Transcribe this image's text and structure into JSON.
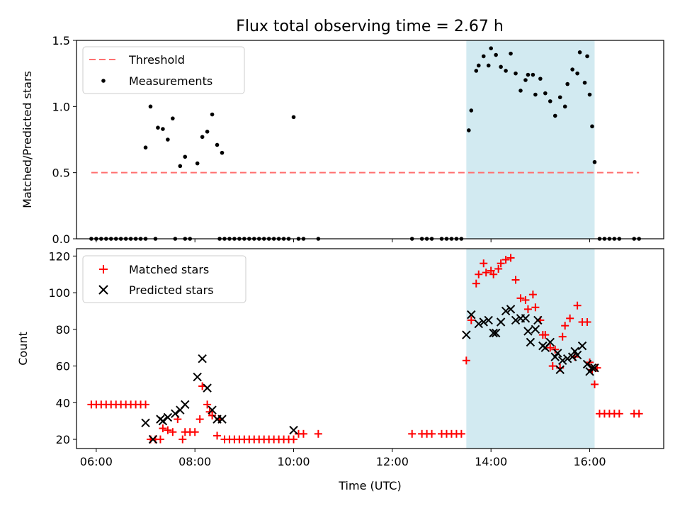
{
  "title": "Flux total observing time = 2.67 h",
  "colors": {
    "threshold": "#ff7070",
    "measurement": "#000000",
    "matched": "#ff0000",
    "predicted": "#000000",
    "span": "#add8e6"
  },
  "chart_data": [
    {
      "type": "scatter",
      "ylabel": "Matched/Predicted stars",
      "xlabel": "",
      "ylim": [
        0,
        1.5
      ],
      "yticks": [
        "0.0",
        "0.5",
        "1.0",
        "1.5"
      ],
      "legend": {
        "placement": "top-left",
        "entries": [
          "Threshold",
          "Measurements"
        ]
      },
      "threshold": {
        "name": "Threshold",
        "value": 0.5,
        "x_start": 5.9,
        "x_end": 17.0
      },
      "highlight_span": [
        13.5,
        16.1
      ],
      "series": [
        {
          "name": "Measurements",
          "points": [
            [
              5.9,
              0
            ],
            [
              6.0,
              0
            ],
            [
              6.1,
              0
            ],
            [
              6.2,
              0
            ],
            [
              6.3,
              0
            ],
            [
              6.4,
              0
            ],
            [
              6.5,
              0
            ],
            [
              6.6,
              0
            ],
            [
              6.7,
              0
            ],
            [
              6.8,
              0
            ],
            [
              6.9,
              0
            ],
            [
              7.0,
              0
            ],
            [
              7.2,
              0
            ],
            [
              7.6,
              0
            ],
            [
              7.8,
              0
            ],
            [
              7.9,
              0
            ],
            [
              7.0,
              0.69
            ],
            [
              7.1,
              1.0
            ],
            [
              7.25,
              0.84
            ],
            [
              7.35,
              0.83
            ],
            [
              7.45,
              0.75
            ],
            [
              7.55,
              0.91
            ],
            [
              7.7,
              0.55
            ],
            [
              7.8,
              0.62
            ],
            [
              8.05,
              0.57
            ],
            [
              8.15,
              0.77
            ],
            [
              8.25,
              0.81
            ],
            [
              8.35,
              0.94
            ],
            [
              8.45,
              0.71
            ],
            [
              8.55,
              0.65
            ],
            [
              8.5,
              0
            ],
            [
              8.6,
              0
            ],
            [
              8.7,
              0
            ],
            [
              8.8,
              0
            ],
            [
              8.9,
              0
            ],
            [
              9.0,
              0
            ],
            [
              9.1,
              0
            ],
            [
              9.2,
              0
            ],
            [
              9.3,
              0
            ],
            [
              9.4,
              0
            ],
            [
              9.5,
              0
            ],
            [
              9.6,
              0
            ],
            [
              9.7,
              0
            ],
            [
              9.8,
              0
            ],
            [
              9.9,
              0
            ],
            [
              10.0,
              0.92
            ],
            [
              10.1,
              0
            ],
            [
              10.2,
              0
            ],
            [
              10.5,
              0
            ],
            [
              12.4,
              0
            ],
            [
              12.6,
              0
            ],
            [
              12.7,
              0
            ],
            [
              12.8,
              0
            ],
            [
              13.0,
              0
            ],
            [
              13.1,
              0
            ],
            [
              13.2,
              0
            ],
            [
              13.3,
              0
            ],
            [
              13.4,
              0
            ],
            [
              13.55,
              0.82
            ],
            [
              13.6,
              0.97
            ],
            [
              13.7,
              1.27
            ],
            [
              13.75,
              1.31
            ],
            [
              13.85,
              1.38
            ],
            [
              13.95,
              1.31
            ],
            [
              14.0,
              1.44
            ],
            [
              14.1,
              1.39
            ],
            [
              14.2,
              1.3
            ],
            [
              14.3,
              1.27
            ],
            [
              14.4,
              1.4
            ],
            [
              14.5,
              1.25
            ],
            [
              14.6,
              1.12
            ],
            [
              14.7,
              1.2
            ],
            [
              14.75,
              1.24
            ],
            [
              14.85,
              1.24
            ],
            [
              14.9,
              1.09
            ],
            [
              15.0,
              1.21
            ],
            [
              15.1,
              1.1
            ],
            [
              15.2,
              1.04
            ],
            [
              15.3,
              0.93
            ],
            [
              15.4,
              1.07
            ],
            [
              15.5,
              1.0
            ],
            [
              15.55,
              1.17
            ],
            [
              15.65,
              1.28
            ],
            [
              15.75,
              1.25
            ],
            [
              15.8,
              1.41
            ],
            [
              15.9,
              1.18
            ],
            [
              15.95,
              1.38
            ],
            [
              16.0,
              1.09
            ],
            [
              16.05,
              0.85
            ],
            [
              16.1,
              0.58
            ],
            [
              16.2,
              0
            ],
            [
              16.3,
              0
            ],
            [
              16.4,
              0
            ],
            [
              16.5,
              0
            ],
            [
              16.6,
              0
            ],
            [
              16.9,
              0
            ],
            [
              17.0,
              0
            ]
          ]
        }
      ]
    },
    {
      "type": "scatter",
      "ylabel": "Count",
      "xlabel": "Time (UTC)",
      "ylim": [
        15,
        124
      ],
      "yticks": [
        "20",
        "40",
        "60",
        "80",
        "100",
        "120"
      ],
      "xlim": [
        5.6,
        17.5
      ],
      "xticks": [
        "06:00",
        "08:00",
        "10:00",
        "12:00",
        "14:00",
        "16:00"
      ],
      "legend": {
        "placement": "top-left",
        "entries": [
          "Matched stars",
          "Predicted stars"
        ]
      },
      "highlight_span": [
        13.5,
        16.1
      ],
      "series": [
        {
          "name": "Matched stars",
          "points": [
            [
              5.9,
              39
            ],
            [
              6.0,
              39
            ],
            [
              6.1,
              39
            ],
            [
              6.2,
              39
            ],
            [
              6.3,
              39
            ],
            [
              6.4,
              39
            ],
            [
              6.5,
              39
            ],
            [
              6.6,
              39
            ],
            [
              6.7,
              39
            ],
            [
              6.8,
              39
            ],
            [
              6.9,
              39
            ],
            [
              7.0,
              39
            ],
            [
              7.1,
              20
            ],
            [
              7.2,
              20
            ],
            [
              7.3,
              20
            ],
            [
              7.35,
              26
            ],
            [
              7.45,
              25
            ],
            [
              7.55,
              24
            ],
            [
              7.65,
              31
            ],
            [
              7.75,
              20
            ],
            [
              7.8,
              24
            ],
            [
              7.9,
              24
            ],
            [
              8.0,
              24
            ],
            [
              8.1,
              31
            ],
            [
              8.15,
              49
            ],
            [
              8.25,
              39
            ],
            [
              8.3,
              35
            ],
            [
              8.35,
              33
            ],
            [
              8.45,
              22
            ],
            [
              8.5,
              31
            ],
            [
              8.6,
              20
            ],
            [
              8.7,
              20
            ],
            [
              8.8,
              20
            ],
            [
              8.9,
              20
            ],
            [
              9.0,
              20
            ],
            [
              9.1,
              20
            ],
            [
              9.2,
              20
            ],
            [
              9.3,
              20
            ],
            [
              9.4,
              20
            ],
            [
              9.5,
              20
            ],
            [
              9.6,
              20
            ],
            [
              9.7,
              20
            ],
            [
              9.8,
              20
            ],
            [
              9.9,
              20
            ],
            [
              10.0,
              20
            ],
            [
              10.1,
              23
            ],
            [
              10.2,
              23
            ],
            [
              10.5,
              23
            ],
            [
              12.4,
              23
            ],
            [
              12.6,
              23
            ],
            [
              12.7,
              23
            ],
            [
              12.8,
              23
            ],
            [
              13.0,
              23
            ],
            [
              13.1,
              23
            ],
            [
              13.2,
              23
            ],
            [
              13.3,
              23
            ],
            [
              13.4,
              23
            ],
            [
              13.5,
              63
            ],
            [
              13.6,
              85
            ],
            [
              13.7,
              105
            ],
            [
              13.75,
              110
            ],
            [
              13.85,
              116
            ],
            [
              13.9,
              111
            ],
            [
              14.0,
              112
            ],
            [
              14.05,
              110
            ],
            [
              14.15,
              113
            ],
            [
              14.2,
              116
            ],
            [
              14.3,
              118
            ],
            [
              14.4,
              119
            ],
            [
              14.5,
              107
            ],
            [
              14.6,
              97
            ],
            [
              14.7,
              96
            ],
            [
              14.75,
              91
            ],
            [
              14.85,
              99
            ],
            [
              14.9,
              92
            ],
            [
              15.0,
              85
            ],
            [
              15.05,
              77
            ],
            [
              15.1,
              77
            ],
            [
              15.2,
              70
            ],
            [
              15.25,
              60
            ],
            [
              15.3,
              69
            ],
            [
              15.4,
              59
            ],
            [
              15.45,
              76
            ],
            [
              15.5,
              82
            ],
            [
              15.6,
              86
            ],
            [
              15.7,
              65
            ],
            [
              15.75,
              93
            ],
            [
              15.85,
              84
            ],
            [
              15.95,
              84
            ],
            [
              16.0,
              62
            ],
            [
              16.05,
              58
            ],
            [
              16.1,
              50
            ],
            [
              16.15,
              59
            ],
            [
              16.2,
              34
            ],
            [
              16.3,
              34
            ],
            [
              16.4,
              34
            ],
            [
              16.5,
              34
            ],
            [
              16.6,
              34
            ],
            [
              16.9,
              34
            ],
            [
              17.0,
              34
            ]
          ]
        },
        {
          "name": "Predicted stars",
          "points": [
            [
              7.0,
              29
            ],
            [
              7.15,
              20
            ],
            [
              7.3,
              31
            ],
            [
              7.35,
              30
            ],
            [
              7.45,
              32
            ],
            [
              7.6,
              34
            ],
            [
              7.7,
              36
            ],
            [
              7.8,
              39
            ],
            [
              8.05,
              54
            ],
            [
              8.15,
              64
            ],
            [
              8.25,
              48
            ],
            [
              8.35,
              36
            ],
            [
              8.45,
              31
            ],
            [
              8.55,
              31
            ],
            [
              10.0,
              25
            ],
            [
              13.5,
              77
            ],
            [
              13.6,
              88
            ],
            [
              13.75,
              83
            ],
            [
              13.85,
              84
            ],
            [
              13.95,
              85
            ],
            [
              14.05,
              78
            ],
            [
              14.1,
              78
            ],
            [
              14.2,
              84
            ],
            [
              14.3,
              90
            ],
            [
              14.4,
              91
            ],
            [
              14.5,
              85
            ],
            [
              14.6,
              86
            ],
            [
              14.7,
              86
            ],
            [
              14.75,
              79
            ],
            [
              14.8,
              73
            ],
            [
              14.9,
              80
            ],
            [
              14.95,
              85
            ],
            [
              15.05,
              71
            ],
            [
              15.1,
              70
            ],
            [
              15.2,
              73
            ],
            [
              15.3,
              65
            ],
            [
              15.35,
              67
            ],
            [
              15.4,
              58
            ],
            [
              15.45,
              63
            ],
            [
              15.55,
              64
            ],
            [
              15.65,
              65
            ],
            [
              15.7,
              68
            ],
            [
              15.75,
              66
            ],
            [
              15.85,
              71
            ],
            [
              15.95,
              61
            ],
            [
              16.0,
              57
            ],
            [
              16.05,
              59
            ],
            [
              16.1,
              59
            ]
          ]
        }
      ]
    }
  ]
}
